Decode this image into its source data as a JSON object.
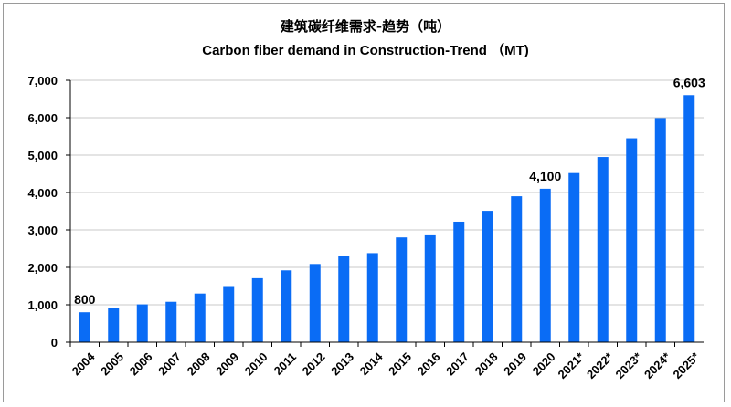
{
  "chart_data": {
    "type": "bar",
    "title": "建筑碳纤维需求-趋势（吨）",
    "subtitle": "Carbon fiber demand in Construction-Trend （MT)",
    "xlabel": "",
    "ylabel": "",
    "categories": [
      "2004",
      "2005",
      "2006",
      "2007",
      "2008",
      "2009",
      "2010",
      "2011",
      "2012",
      "2013",
      "2014",
      "2015",
      "2016",
      "2017",
      "2018",
      "2019",
      "2020",
      "2021*",
      "2022*",
      "2023*",
      "2024*",
      "2025*"
    ],
    "series": [
      {
        "values": [
          800,
          910,
          1010,
          1080,
          1300,
          1500,
          1710,
          1920,
          2090,
          2300,
          2380,
          2800,
          2880,
          3220,
          3510,
          3900,
          4100,
          4520,
          4950,
          5450,
          5990,
          6603
        ]
      }
    ],
    "data_labels": [
      {
        "category": "2004",
        "text": "800"
      },
      {
        "category": "2020",
        "text": "4,100"
      },
      {
        "category": "2025*",
        "text": "6,603"
      }
    ],
    "ylim": [
      0,
      7000
    ],
    "yticks": [
      0,
      1000,
      2000,
      3000,
      4000,
      5000,
      6000,
      7000
    ],
    "ytick_labels": [
      "0",
      "1,000",
      "2,000",
      "3,000",
      "4,000",
      "5,000",
      "6,000",
      "7,000"
    ],
    "grid": true,
    "legend": "none",
    "colors": {
      "bar": "#0a6cf5",
      "grid": "#c8c8c8",
      "axis": "#000000"
    }
  }
}
